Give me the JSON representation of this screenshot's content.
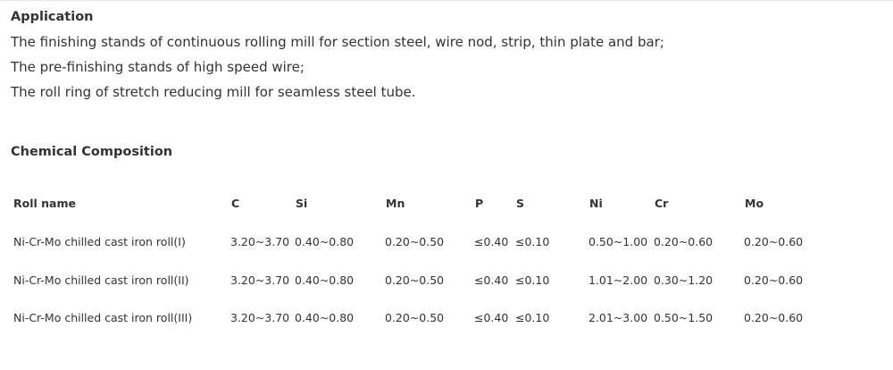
{
  "application": {
    "title": "Application",
    "lines": [
      "The finishing stands of continuous rolling mill for section steel, wire nod, strip, thin plate and bar;",
      "The pre-finishing stands of high speed wire;",
      "The roll ring of stretch reducing mill for seamless steel tube."
    ]
  },
  "composition": {
    "title": "Chemical Composition"
  },
  "table": {
    "header": [
      "Roll name",
      "C",
      "Si",
      "Mn",
      "P",
      "S",
      "Ni",
      "Cr",
      "Mo"
    ],
    "rows": [
      [
        "Ni-Cr-Mo chilled cast iron roll(I)",
        "3.20~3.70",
        "0.40~0.80",
        "0.20~0.50",
        "≤0.40",
        "≤0.10",
        "0.50~1.00",
        "0.20~0.60",
        "0.20~0.60"
      ],
      [
        "Ni-Cr-Mo chilled cast iron roll(II)",
        "3.20~3.70",
        "0.40~0.80",
        "0.20~0.50",
        "≤0.40",
        "≤0.10",
        "1.01~2.00",
        "0.30~1.20",
        "0.20~0.60"
      ],
      [
        "Ni-Cr-Mo chilled cast iron roll(III)",
        "3.20~3.70",
        "0.40~0.80",
        "0.20~0.50",
        "≤0.40",
        "≤0.10",
        "2.01~3.00",
        "0.50~1.50",
        "0.20~0.60"
      ]
    ]
  }
}
